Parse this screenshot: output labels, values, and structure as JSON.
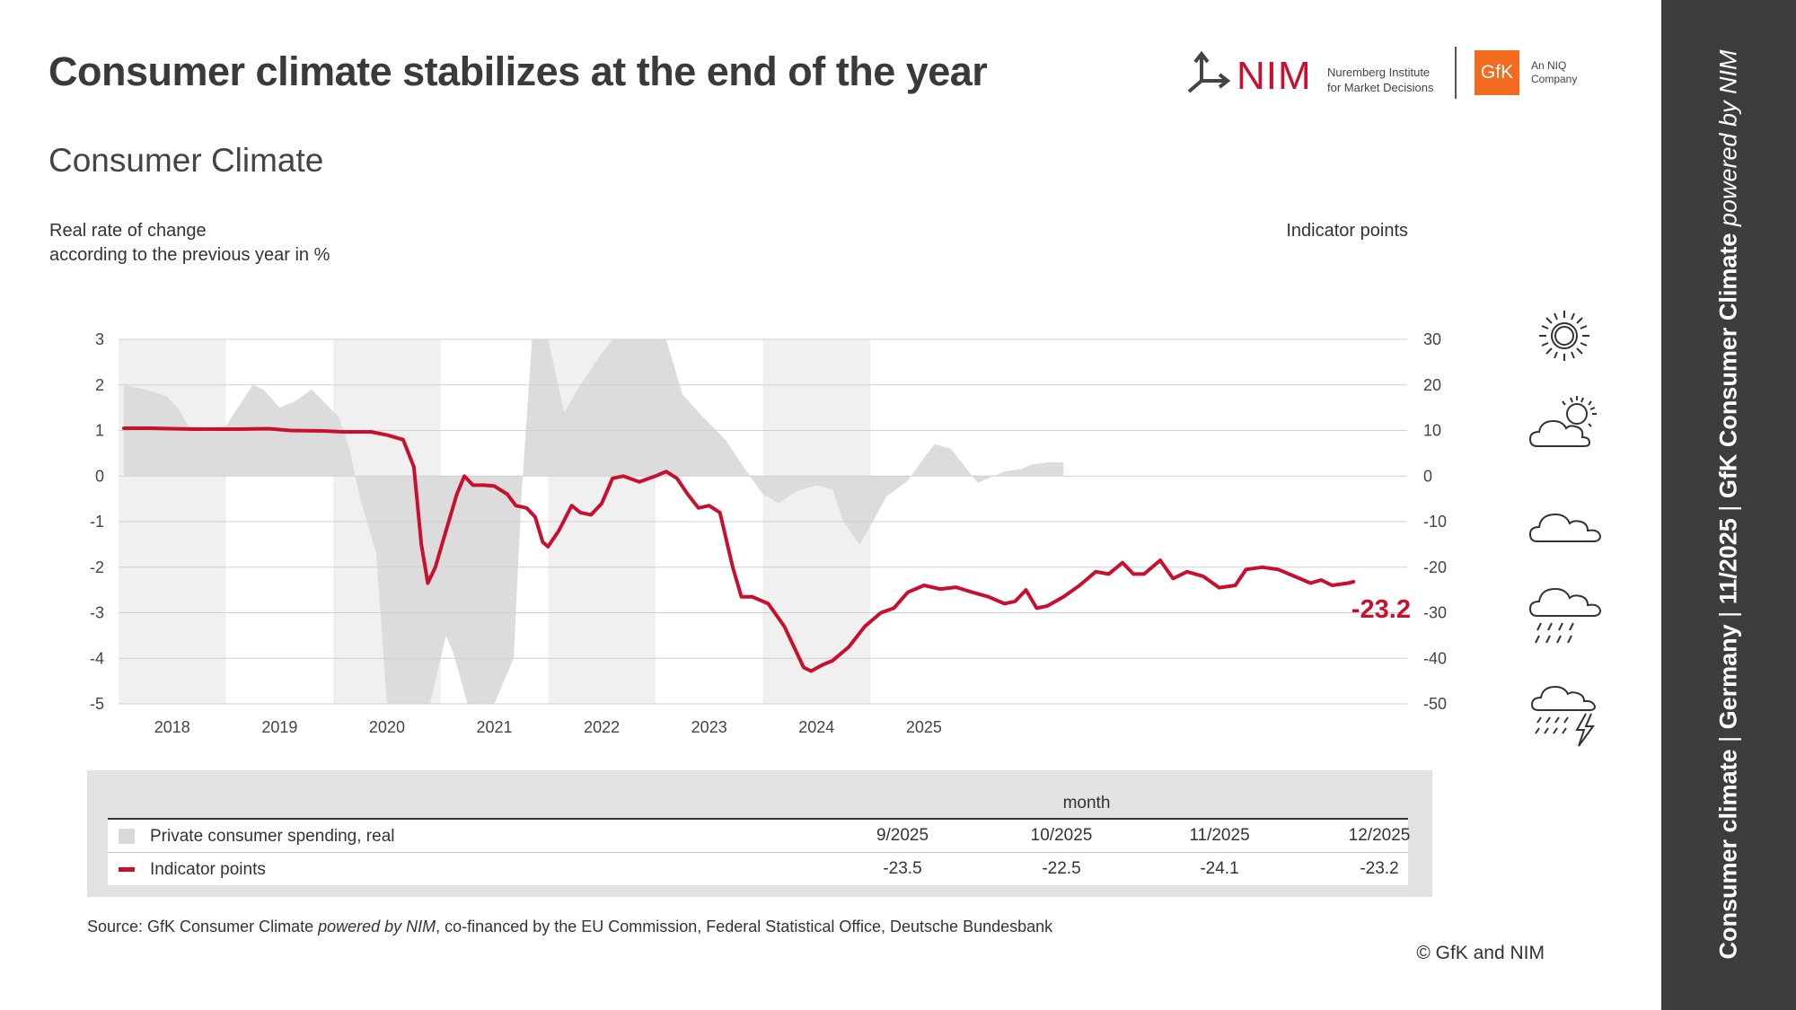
{
  "header": {
    "title": "Consumer climate stabilizes at the end of the year",
    "subtitle": "Consumer Climate",
    "left_axis_note": [
      "Real rate of change",
      "according to the previous year in %"
    ],
    "right_axis_note": "Indicator points"
  },
  "logos": {
    "nim_text": "NIM",
    "nim_sub": [
      "Nuremberg Institute",
      "for Market Decisions"
    ],
    "gfk_text": "GfK",
    "gfk_sub": [
      "An NIQ",
      "Company"
    ]
  },
  "sidebar": {
    "part1": "Consumer climate",
    "part2": "Germany",
    "part3": "11/2025",
    "part4": "GfK Consumer Climate",
    "part5": "powered by NIM"
  },
  "weather_icons": [
    "sun-icon",
    "sun-cloud-icon",
    "cloud-icon",
    "rain-cloud-icon",
    "storm-cloud-icon"
  ],
  "chart_data": {
    "type": "line",
    "x_labels": [
      "2018",
      "2019",
      "2020",
      "2021",
      "2022",
      "2023",
      "2024",
      "2025"
    ],
    "y_left": {
      "range": [
        -5,
        3
      ],
      "ticks": [
        "3",
        "2",
        "1",
        "0",
        "-1",
        "-2",
        "-3",
        "-4",
        "-5"
      ]
    },
    "y_right": {
      "range": [
        -50,
        30
      ],
      "ticks": [
        "30",
        "20",
        "10",
        "0",
        "-10",
        "-20",
        "-30",
        "-40",
        "-50"
      ]
    },
    "grid": true,
    "shaded_years": [
      "2018",
      "2020",
      "2022",
      "2024"
    ],
    "colors": {
      "indicator": "#c8102e",
      "spending": "#dcdcdc",
      "shade": "#f0f0f0"
    },
    "series": [
      {
        "name": "Private consumer spending, real",
        "axis": "left",
        "kind": "area",
        "points": [
          [
            2017.55,
            2.0
          ],
          [
            2017.75,
            1.9
          ],
          [
            2017.95,
            1.75
          ],
          [
            2018.05,
            1.5
          ],
          [
            2018.15,
            1.1
          ],
          [
            2018.35,
            1.05
          ],
          [
            2018.5,
            1.1
          ],
          [
            2018.75,
            2.0
          ],
          [
            2018.85,
            1.9
          ],
          [
            2019.0,
            1.5
          ],
          [
            2019.15,
            1.65
          ],
          [
            2019.3,
            1.9
          ],
          [
            2019.55,
            1.3
          ],
          [
            2019.65,
            0.6
          ],
          [
            2019.75,
            -0.5
          ],
          [
            2019.9,
            -1.7
          ],
          [
            2020.0,
            -5.0
          ],
          [
            2020.4,
            -5.0
          ],
          [
            2020.55,
            -3.5
          ],
          [
            2020.62,
            -3.9
          ],
          [
            2020.75,
            -5.0
          ],
          [
            2021.0,
            -5.0
          ],
          [
            2021.18,
            -4.0
          ],
          [
            2021.25,
            -0.5
          ],
          [
            2021.35,
            3.0
          ],
          [
            2021.5,
            3.0
          ],
          [
            2021.65,
            1.4
          ],
          [
            2021.8,
            2.0
          ],
          [
            2022.0,
            2.7
          ],
          [
            2022.1,
            3.0
          ],
          [
            2022.6,
            3.0
          ],
          [
            2022.75,
            1.8
          ],
          [
            2022.9,
            1.4
          ],
          [
            2023.15,
            0.8
          ],
          [
            2023.35,
            0.1
          ],
          [
            2023.5,
            -0.4
          ],
          [
            2023.65,
            -0.6
          ],
          [
            2023.8,
            -0.35
          ],
          [
            2024.0,
            -0.2
          ],
          [
            2024.15,
            -0.3
          ],
          [
            2024.25,
            -1.0
          ],
          [
            2024.4,
            -1.5
          ],
          [
            2024.5,
            -1.1
          ],
          [
            2024.65,
            -0.45
          ],
          [
            2024.85,
            -0.1
          ],
          [
            2025.0,
            0.4
          ],
          [
            2025.1,
            0.7
          ],
          [
            2025.25,
            0.6
          ],
          [
            2025.4,
            0.15
          ],
          [
            2025.5,
            -0.15
          ],
          [
            2025.6,
            -0.05
          ],
          [
            2025.75,
            0.1
          ],
          [
            2025.9,
            0.15
          ],
          [
            2026.0,
            0.25
          ],
          [
            2026.15,
            0.3
          ],
          [
            2026.3,
            0.3
          ]
        ]
      },
      {
        "name": "Indicator points",
        "axis": "right",
        "kind": "line",
        "points": [
          [
            2017.55,
            10.5
          ],
          [
            2017.8,
            10.5
          ],
          [
            2018.2,
            10.3
          ],
          [
            2018.6,
            10.3
          ],
          [
            2018.9,
            10.4
          ],
          [
            2019.1,
            10.0
          ],
          [
            2019.4,
            9.9
          ],
          [
            2019.6,
            9.7
          ],
          [
            2019.85,
            9.7
          ],
          [
            2020.0,
            9.0
          ],
          [
            2020.15,
            8.0
          ],
          [
            2020.25,
            2.0
          ],
          [
            2020.32,
            -15.0
          ],
          [
            2020.38,
            -23.5
          ],
          [
            2020.45,
            -20.0
          ],
          [
            2020.55,
            -12.0
          ],
          [
            2020.65,
            -4.0
          ],
          [
            2020.72,
            0.0
          ],
          [
            2020.8,
            -2.0
          ],
          [
            2020.9,
            -2.0
          ],
          [
            2021.0,
            -2.2
          ],
          [
            2021.12,
            -4.0
          ],
          [
            2021.2,
            -6.5
          ],
          [
            2021.3,
            -7.0
          ],
          [
            2021.38,
            -9.0
          ],
          [
            2021.45,
            -14.5
          ],
          [
            2021.5,
            -15.5
          ],
          [
            2021.6,
            -12.0
          ],
          [
            2021.72,
            -6.5
          ],
          [
            2021.8,
            -8.0
          ],
          [
            2021.9,
            -8.5
          ],
          [
            2022.0,
            -6.0
          ],
          [
            2022.1,
            -0.5
          ],
          [
            2022.2,
            0.0
          ],
          [
            2022.35,
            -1.3
          ],
          [
            2022.5,
            0.0
          ],
          [
            2022.6,
            1.0
          ],
          [
            2022.7,
            -0.5
          ],
          [
            2022.8,
            -4.0
          ],
          [
            2022.9,
            -7.0
          ],
          [
            2023.0,
            -6.5
          ],
          [
            2023.1,
            -8.0
          ],
          [
            2023.22,
            -20.0
          ],
          [
            2023.3,
            -26.5
          ],
          [
            2023.4,
            -26.5
          ],
          [
            2023.55,
            -28.0
          ],
          [
            2023.7,
            -33.0
          ],
          [
            2023.8,
            -38.0
          ],
          [
            2023.88,
            -42.0
          ],
          [
            2023.95,
            -42.8
          ],
          [
            2024.05,
            -41.5
          ],
          [
            2024.15,
            -40.5
          ],
          [
            2024.3,
            -37.5
          ],
          [
            2024.45,
            -33.0
          ],
          [
            2024.6,
            -30.0
          ],
          [
            2024.72,
            -29.0
          ],
          [
            2024.85,
            -25.5
          ],
          [
            2025.0,
            -24.0
          ],
          [
            2025.15,
            -24.8
          ],
          [
            2025.3,
            -24.4
          ],
          [
            2025.45,
            -25.5
          ],
          [
            2025.6,
            -26.5
          ],
          [
            2025.75,
            -28.0
          ],
          [
            2025.85,
            -27.5
          ],
          [
            2025.95,
            -25.0
          ],
          [
            2026.05,
            -29.0
          ],
          [
            2026.15,
            -28.5
          ],
          [
            2026.3,
            -26.5
          ],
          [
            2026.45,
            -24.0
          ],
          [
            2026.6,
            -21.0
          ],
          [
            2026.72,
            -21.5
          ],
          [
            2026.85,
            -19.0
          ],
          [
            2026.95,
            -21.5
          ],
          [
            2027.05,
            -21.5
          ],
          [
            2027.2,
            -18.5
          ],
          [
            2027.32,
            -22.5
          ],
          [
            2027.45,
            -21.0
          ],
          [
            2027.6,
            -22.0
          ],
          [
            2027.75,
            -24.5
          ],
          [
            2027.9,
            -24.0
          ],
          [
            2028.0,
            -20.5
          ],
          [
            2028.15,
            -20.0
          ],
          [
            2028.3,
            -20.5
          ],
          [
            2028.45,
            -22.0
          ],
          [
            2028.6,
            -23.5
          ],
          [
            2028.7,
            -22.8
          ],
          [
            2028.8,
            -24.0
          ],
          [
            2028.95,
            -23.5
          ],
          [
            2029.0,
            -23.2
          ]
        ]
      }
    ],
    "annotation": {
      "text": "-23.2",
      "x": 2029.0,
      "y": -23.2
    }
  },
  "legend": {
    "month_label": "month",
    "months": [
      "9/2025",
      "10/2025",
      "11/2025",
      "12/2025"
    ],
    "rows": [
      {
        "label": "Private consumer spending, real",
        "values": []
      },
      {
        "label": "Indicator points",
        "values": [
          "-23.5",
          "-22.5",
          "-24.1",
          "-23.2"
        ]
      }
    ]
  },
  "footer": {
    "source_prefix": "Source: GfK Consumer Climate ",
    "source_italic": "powered by NIM",
    "source_suffix": ", co-financed by the EU Commission, Federal Statistical Office, Deutsche Bundesbank",
    "copyright": "© GfK and NIM"
  }
}
